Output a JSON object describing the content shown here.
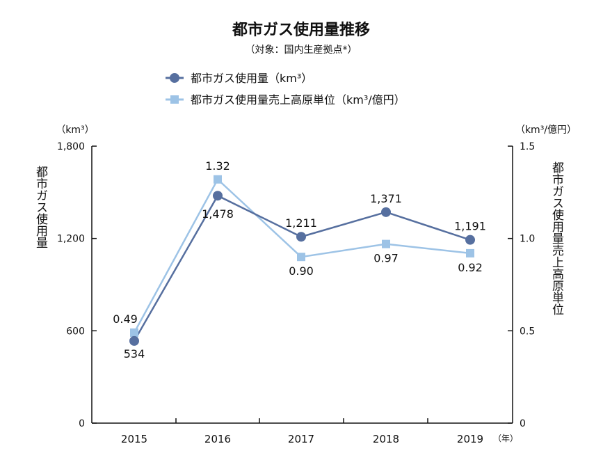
{
  "chart_data": {
    "type": "line",
    "title": "都市ガス使用量推移",
    "subtitle": "（対象：国内生産拠点*）",
    "categories": [
      "2015",
      "2016",
      "2017",
      "2018",
      "2019"
    ],
    "x_unit": "（年）",
    "left_axis": {
      "label": "都市ガス使用量",
      "unit": "（km³）",
      "ylim": [
        0,
        1800
      ],
      "ticks": [
        "0",
        "600",
        "1,200",
        "1,800"
      ],
      "tick_values": [
        0,
        600,
        1200,
        1800
      ]
    },
    "right_axis": {
      "label": "都市ガス使用量売上高原単位",
      "unit": "（km³/億円）",
      "ylim": [
        0,
        1.5
      ],
      "ticks": [
        "0",
        "0.5",
        "1.0",
        "1.5"
      ],
      "tick_values": [
        0,
        0.5,
        1.0,
        1.5
      ]
    },
    "series": [
      {
        "name": "都市ガス使用量（km³）",
        "axis": "left",
        "marker": "circle",
        "color": "#566f9f",
        "values": [
          534,
          1478,
          1211,
          1371,
          1191
        ],
        "labels": [
          "534",
          "1,478",
          "1,211",
          "1,371",
          "1,191"
        ]
      },
      {
        "name": "都市ガス使用量売上高原単位（km³/億円）",
        "axis": "right",
        "marker": "square",
        "color": "#9dc3e6",
        "values": [
          0.49,
          1.32,
          0.9,
          0.97,
          0.92
        ],
        "labels": [
          "0.49",
          "1.32",
          "0.90",
          "0.97",
          "0.92"
        ]
      }
    ],
    "legend": "top-center",
    "grid": false
  }
}
